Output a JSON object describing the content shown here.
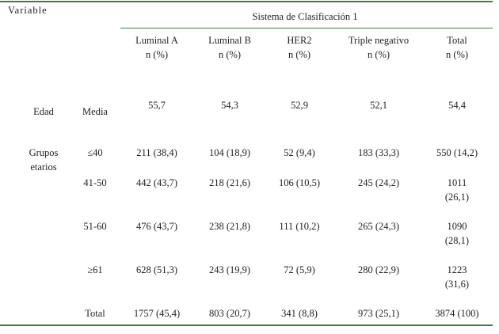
{
  "header": {
    "variable": "Variable",
    "system": "Sistema de Clasificación 1",
    "columns": [
      [
        "Luminal A",
        "n (%)"
      ],
      [
        "Luminal B",
        "n (%)"
      ],
      [
        "HER2",
        "n (%)"
      ],
      [
        "Triple negativo",
        "n (%)"
      ],
      [
        "Total",
        "n (%)"
      ]
    ]
  },
  "rows": [
    {
      "group": "Edad",
      "label": "Media",
      "cells": [
        "55,7",
        "54,3",
        "52,9",
        "52,1",
        "54,4"
      ]
    },
    {
      "group": "Grupos etarios",
      "label": "≤40",
      "cells": [
        "211 (38,4)",
        "104 (18,9)",
        "52 (9,4)",
        "183 (33,3)",
        "550 (14,2)"
      ]
    },
    {
      "label": "41-50",
      "cells": [
        "442 (43,7)",
        "218 (21,6)",
        "106 (10,5)",
        "245 (24,2)",
        "1011 (26,1)"
      ]
    },
    {
      "label": "51-60",
      "cells": [
        "476 (43,7)",
        "238 (21,8)",
        "111 (10,2)",
        "265 (24,3)",
        "1090 (28,1)"
      ]
    },
    {
      "label": "≥61",
      "cells": [
        "628 (51,3)",
        "243 (19,9)",
        "72 (5,9)",
        "280 (22,9)",
        "1223 (31,6)"
      ]
    },
    {
      "label": "Total",
      "cells": [
        "1757 (45,4)",
        "803 (20,7)",
        "341 (8,8)",
        "973 (25,1)",
        "3874 (100)"
      ]
    }
  ]
}
